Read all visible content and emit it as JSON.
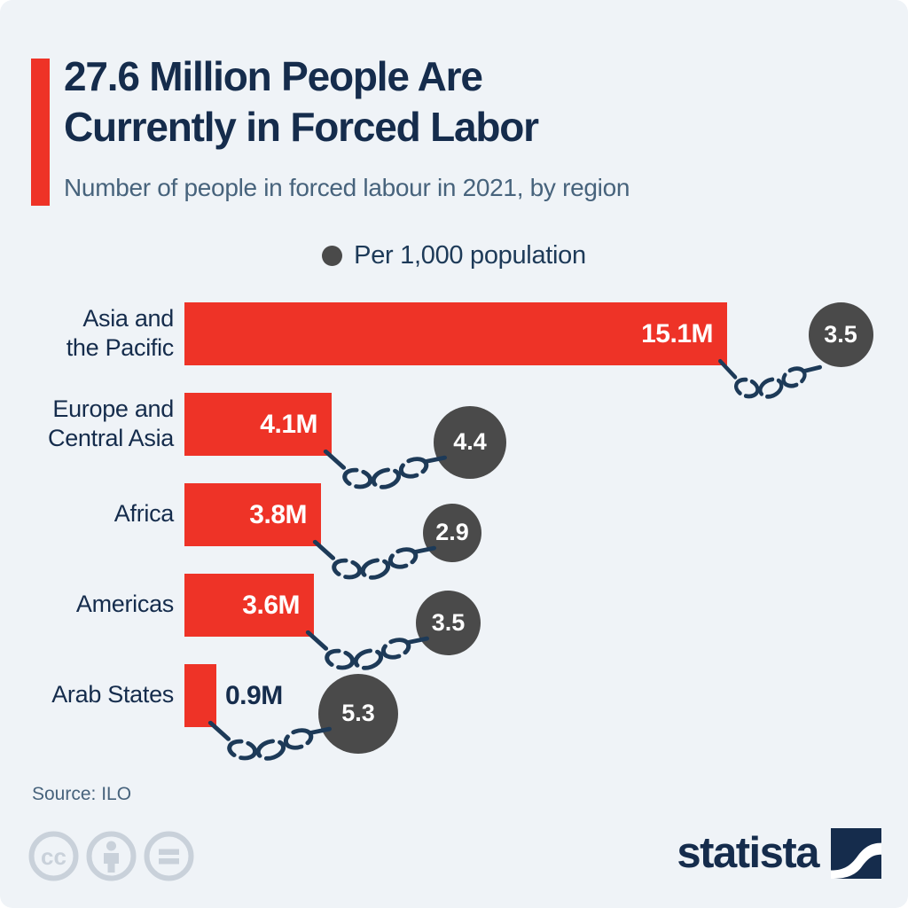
{
  "header": {
    "title_line1": "27.6 Million People Are",
    "title_line2": "Currently in Forced Labor",
    "subtitle": "Number of people in forced labour in 2021, by region"
  },
  "legend": {
    "label": "Per 1,000 population"
  },
  "chart_data": {
    "type": "bar",
    "orientation": "horizontal",
    "title": "27.6 Million People Are Currently in Forced Labor",
    "subtitle": "Number of people in forced labour in 2021, by region",
    "categories": [
      "Asia and\nthe Pacific",
      "Europe and\nCentral Asia",
      "Africa",
      "Americas",
      "Arab States"
    ],
    "series": [
      {
        "name": "People in forced labour (millions)",
        "unit": "M",
        "values": [
          15.1,
          4.1,
          3.8,
          3.6,
          0.9
        ],
        "labels": [
          "15.1M",
          "4.1M",
          "3.8M",
          "3.6M",
          "0.9M"
        ]
      },
      {
        "name": "Per 1,000 population",
        "values": [
          3.5,
          4.4,
          2.9,
          3.5,
          5.3
        ],
        "labels": [
          "3.5",
          "4.4",
          "2.9",
          "3.5",
          "5.3"
        ]
      }
    ],
    "xlim": [
      0,
      16
    ],
    "grid": false,
    "legend_position": "top-center"
  },
  "colors": {
    "background": "#eff3f7",
    "bar": "#ee3327",
    "bubble": "#4a4a4a",
    "navy": "#152c4c",
    "slate": "#47637c",
    "chain": "#1d3a58",
    "license_gray": "#c9d1da"
  },
  "footer": {
    "source": "Source: ILO",
    "brand": "statista",
    "license_icons": [
      "cc-icon",
      "attribution-person-icon",
      "no-derivatives-equals-icon"
    ]
  }
}
